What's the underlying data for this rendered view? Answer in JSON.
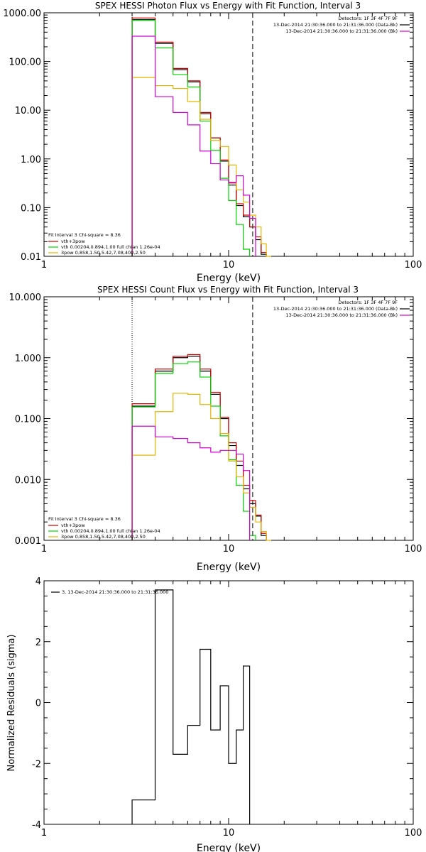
{
  "chart_data": [
    {
      "type": "line",
      "title": "SPEX HESSI Photon Flux vs Energy with Fit Function, Interval 3",
      "xlabel": "Energy (keV)",
      "ylabel": "",
      "xscale": "log",
      "yscale": "log",
      "xlim": [
        1,
        100
      ],
      "ylim": [
        0.01,
        1000
      ],
      "x_ticks": [
        "1",
        "10",
        "100"
      ],
      "y_ticks": [
        "0.01",
        "0.10",
        "1.00",
        "10.00",
        "100.00",
        "1000.00"
      ],
      "legend_header": "Detectors: 1F 3F 4F 7F 9F",
      "legend_entries": [
        {
          "label": "13-Dec-2014 21:30:36.000 to 21:31:36.000 (Data-Bk)",
          "color": "#000000"
        },
        {
          "label": "13-Dec-2014 21:30:36.000 to 21:31:36.000 (Bk)",
          "color": "#d400d4"
        }
      ],
      "fit_header": "Fit Interval 3   Chi-square = 8.36",
      "fit_entries": [
        {
          "label": "vth+3pow",
          "color": "#cc0000"
        },
        {
          "label": "vth 0.00204,0.894,1.00  full chian 1.26e-04",
          "color": "#00d400"
        },
        {
          "label": "3pow 0.858,1.50,5.42,7.08,400,2.50",
          "color": "#e6b400"
        }
      ],
      "vlines": [
        {
          "x": 3,
          "style": "dotted",
          "color": "#000000"
        },
        {
          "x": 13.5,
          "style": "dashed",
          "color": "#000000"
        }
      ],
      "edges": [
        3,
        4,
        5,
        6,
        7,
        8,
        9,
        10,
        11,
        12,
        13,
        14,
        15,
        16,
        17
      ],
      "series": [
        {
          "name": "Data-Bk",
          "color": "#000000",
          "values": [
            720,
            235,
            68,
            38,
            8.5,
            2.7,
            0.9,
            0.29,
            0.11,
            0.065,
            0.04,
            0.022,
            0.011,
            null
          ]
        },
        {
          "name": "vth+3pow",
          "color": "#cc0000",
          "values": [
            780,
            250,
            72,
            40,
            9,
            2.7,
            0.95,
            0.32,
            0.12,
            0.07,
            0.04,
            0.025,
            0.012,
            null
          ]
        },
        {
          "name": "vth",
          "color": "#00d400",
          "values": [
            700,
            190,
            54,
            30,
            6,
            1.5,
            0.4,
            0.14,
            0.045,
            0.014,
            null,
            null,
            null,
            null
          ]
        },
        {
          "name": "3pow",
          "color": "#e6b400",
          "values": [
            47,
            32,
            28,
            15,
            6.5,
            2.4,
            1.8,
            0.75,
            0.23,
            0.13,
            0.07,
            0.04,
            0.018,
            0.01
          ]
        },
        {
          "name": "Bk",
          "color": "#d400d4",
          "values": [
            330,
            19,
            9,
            5,
            1.45,
            0.8,
            0.37,
            0.33,
            0.45,
            0.18,
            0.06,
            null,
            null,
            null
          ]
        }
      ]
    },
    {
      "type": "line",
      "title": "SPEX HESSI Count Flux vs Energy with Fit Function, Interval 3",
      "xlabel": "Energy (keV)",
      "ylabel": "",
      "xscale": "log",
      "yscale": "log",
      "xlim": [
        1,
        100
      ],
      "ylim": [
        0.001,
        10
      ],
      "x_ticks": [
        "1",
        "10",
        "100"
      ],
      "y_ticks": [
        "0.001",
        "0.010",
        "0.100",
        "1.000",
        "10.000"
      ],
      "legend_header": "Detectors: 1F 3F 4F 7F 9F",
      "legend_entries": [
        {
          "label": "13-Dec-2014 21:30:36.000 to 21:31:36.000 (Data-Bk)",
          "color": "#000000"
        },
        {
          "label": "13-Dec-2014 21:30:36.000 to 21:31:36.000 (Bk)",
          "color": "#d400d4"
        }
      ],
      "fit_header": "Fit Interval 3   Chi-square = 8.36",
      "fit_entries": [
        {
          "label": "vth+3pow",
          "color": "#cc0000"
        },
        {
          "label": "vth 0.00204,0.894,1.00  full chian 1.26e-04",
          "color": "#00d400"
        },
        {
          "label": "3pow 0.858,1.50,5.42,7.08,400,2.50",
          "color": "#e6b400"
        }
      ],
      "vlines": [
        {
          "x": 3,
          "style": "dotted",
          "color": "#000000"
        },
        {
          "x": 13.5,
          "style": "dashed",
          "color": "#000000"
        }
      ],
      "edges": [
        3,
        4,
        5,
        6,
        7,
        8,
        9,
        10,
        11,
        12,
        13,
        14,
        15,
        16,
        17
      ],
      "series": [
        {
          "name": "Data-Bk",
          "color": "#000000",
          "values": [
            0.16,
            0.6,
            1.0,
            1.05,
            0.6,
            0.25,
            0.1,
            0.036,
            0.017,
            0.007,
            0.004,
            0.0025,
            0.0012,
            null
          ]
        },
        {
          "name": "vth+3pow",
          "color": "#cc0000",
          "values": [
            0.175,
            0.65,
            1.05,
            1.12,
            0.65,
            0.27,
            0.105,
            0.04,
            0.02,
            0.008,
            0.0045,
            0.0026,
            0.0013,
            null
          ]
        },
        {
          "name": "vth",
          "color": "#00d400",
          "values": [
            0.155,
            0.55,
            0.8,
            0.85,
            0.48,
            0.16,
            0.052,
            0.021,
            0.008,
            0.003,
            0.0012,
            null,
            null,
            null
          ]
        },
        {
          "name": "3pow",
          "color": "#e6b400",
          "values": [
            0.025,
            0.13,
            0.26,
            0.25,
            0.17,
            0.1,
            0.057,
            0.02,
            0.011,
            0.006,
            0.0035,
            0.002,
            0.0014,
            0.001
          ]
        },
        {
          "name": "Bk",
          "color": "#d400d4",
          "values": [
            0.075,
            0.05,
            0.047,
            0.04,
            0.033,
            0.028,
            0.03,
            0.03,
            0.026,
            0.014,
            null,
            null,
            null,
            null
          ]
        }
      ]
    },
    {
      "type": "line",
      "title": "",
      "xlabel": "Energy (keV)",
      "ylabel": "Normalized Residuals (sigma)",
      "xscale": "log",
      "yscale": "linear",
      "xlim": [
        1,
        100
      ],
      "ylim": [
        -4,
        4
      ],
      "x_ticks": [
        "1",
        "10",
        "100"
      ],
      "y_ticks": [
        "-4",
        "-2",
        "0",
        "2",
        "4"
      ],
      "legend_entries": [
        {
          "label": "3, 13-Dec-2014 21:30:36.000 to 21:31:36.000",
          "color": "#000000"
        }
      ],
      "edges": [
        3,
        4,
        5,
        6,
        7,
        8,
        9,
        10,
        11,
        12,
        13
      ],
      "series": [
        {
          "name": "",
          "color": "#000000",
          "values": [
            -3.2,
            3.7,
            -1.7,
            -0.75,
            1.75,
            -0.9,
            0.55,
            -2.0,
            -0.9,
            1.2
          ]
        }
      ]
    }
  ]
}
